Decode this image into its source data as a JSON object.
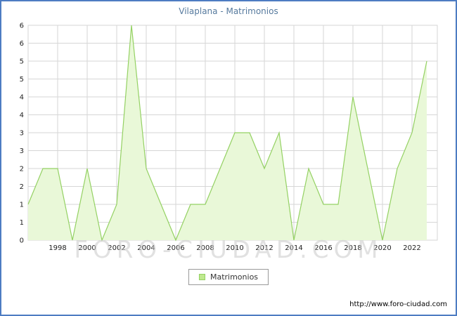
{
  "title": "Vilaplana - Matrimonios",
  "legend": {
    "label": "Matrimonios"
  },
  "watermark": "FORO-CIUDAD.COM",
  "footer": {
    "url": "http://www.foro-ciudad.com"
  },
  "colors": {
    "border": "#4d7cc2",
    "grid": "#d6d6d6",
    "line": "#94d163",
    "fill": "#e9f8d8",
    "swatch_fill": "#bfe98f",
    "title_text": "#567a9e",
    "watermark": "#c9c9c9",
    "tick_text": "#222222"
  },
  "chart_data": {
    "type": "area",
    "title": "Vilaplana - Matrimonios",
    "xlabel": "",
    "ylabel": "",
    "x": [
      1996,
      1997,
      1998,
      1999,
      2000,
      2001,
      2002,
      2003,
      2004,
      2005,
      2006,
      2007,
      2008,
      2009,
      2010,
      2011,
      2012,
      2013,
      2014,
      2015,
      2016,
      2017,
      2018,
      2019,
      2020,
      2021,
      2022,
      2023
    ],
    "values": [
      1,
      2,
      2,
      0,
      2,
      0,
      1,
      6,
      2,
      1,
      0,
      1,
      1,
      2,
      3,
      3,
      2,
      3,
      0,
      2,
      1,
      1,
      4,
      2,
      0,
      2,
      3,
      5
    ],
    "series_name": "Matrimonios",
    "ylim": [
      0,
      6
    ],
    "y_tick_step": 0.5,
    "y_tick_labels_top_to_bottom": [
      "6",
      "6",
      "5",
      "5",
      "4",
      "4",
      "3",
      "3",
      "2",
      "2",
      "1",
      "1",
      "0"
    ],
    "x_tick_labels": [
      "1998",
      "2000",
      "2002",
      "2004",
      "2006",
      "2008",
      "2010",
      "2012",
      "2014",
      "2016",
      "2018",
      "2020",
      "2022"
    ],
    "grid": true,
    "legend": [
      "Matrimonios"
    ],
    "legend_position": "bottom-center"
  }
}
